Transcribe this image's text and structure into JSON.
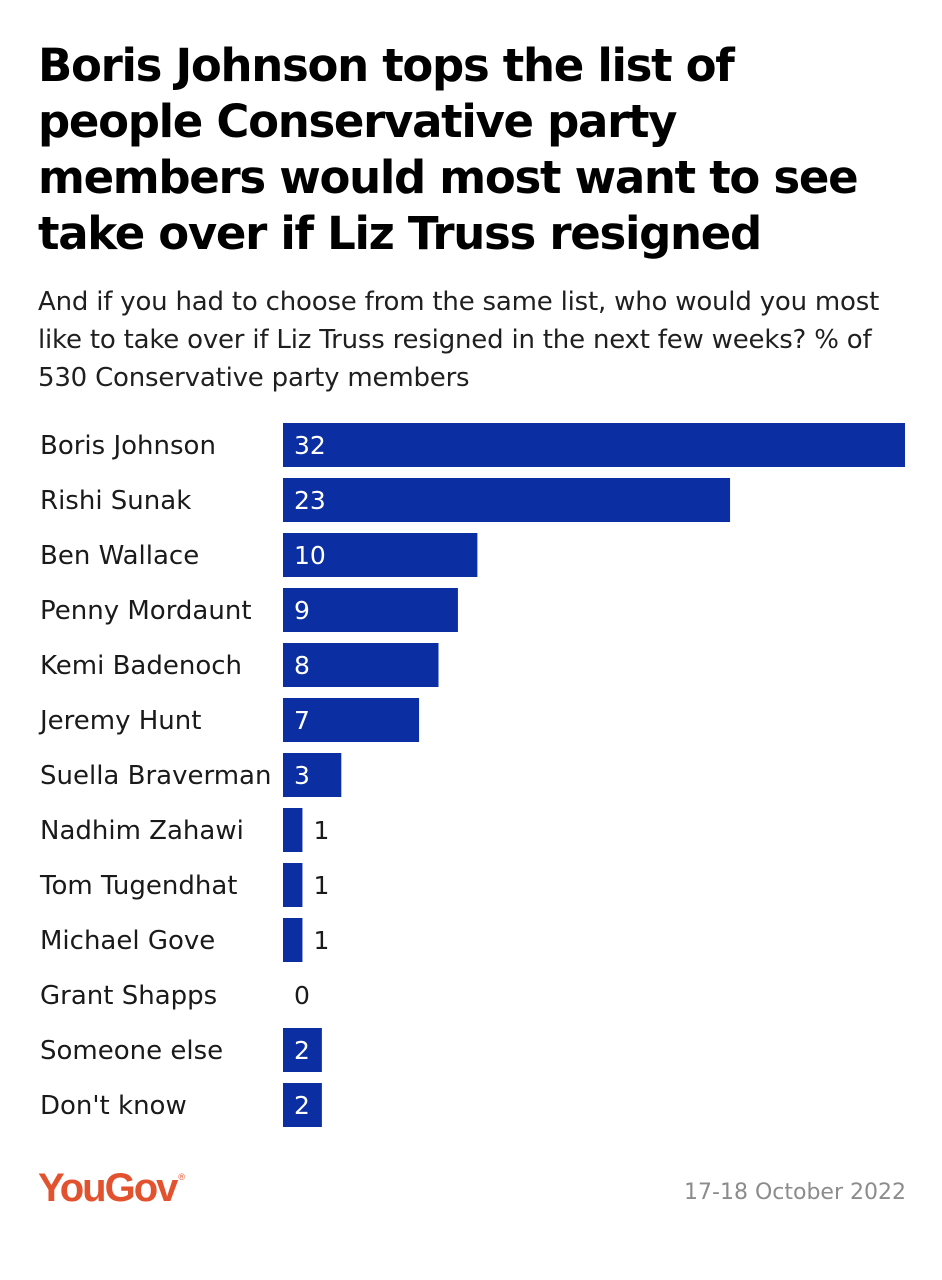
{
  "title": "Boris Johnson tops the list of people Conservative party members would most want to see take over if Liz Truss resigned",
  "subtitle": "And if you had to choose from the same list, who would you most like to take over if Liz Truss resigned in the next few weeks? % of 530 Conservative party members",
  "footer": {
    "logo": "YouGov",
    "logo_mark": "®",
    "date": "17-18 October 2022"
  },
  "colors": {
    "bar": "#0b2fa3",
    "label_inside": "#ffffff",
    "label_outside": "#1a1a1a",
    "logo": "#e3522f"
  },
  "chart_data": {
    "type": "bar",
    "orientation": "horizontal",
    "title": "Boris Johnson tops the list of people Conservative party members would most want to see take over if Liz Truss resigned",
    "xlabel": "",
    "ylabel": "",
    "unit": "%",
    "xlim": [
      0,
      32
    ],
    "grid": false,
    "legend": "none",
    "categories": [
      "Boris Johnson",
      "Rishi Sunak",
      "Ben Wallace",
      "Penny Mordaunt",
      "Kemi Badenoch",
      "Jeremy Hunt",
      "Suella Braverman",
      "Nadhim Zahawi",
      "Tom Tugendhat",
      "Michael Gove",
      "Grant Shapps",
      "Someone else",
      "Don't know"
    ],
    "values": [
      32,
      23,
      10,
      9,
      8,
      7,
      3,
      1,
      1,
      1,
      0,
      2,
      2
    ]
  }
}
